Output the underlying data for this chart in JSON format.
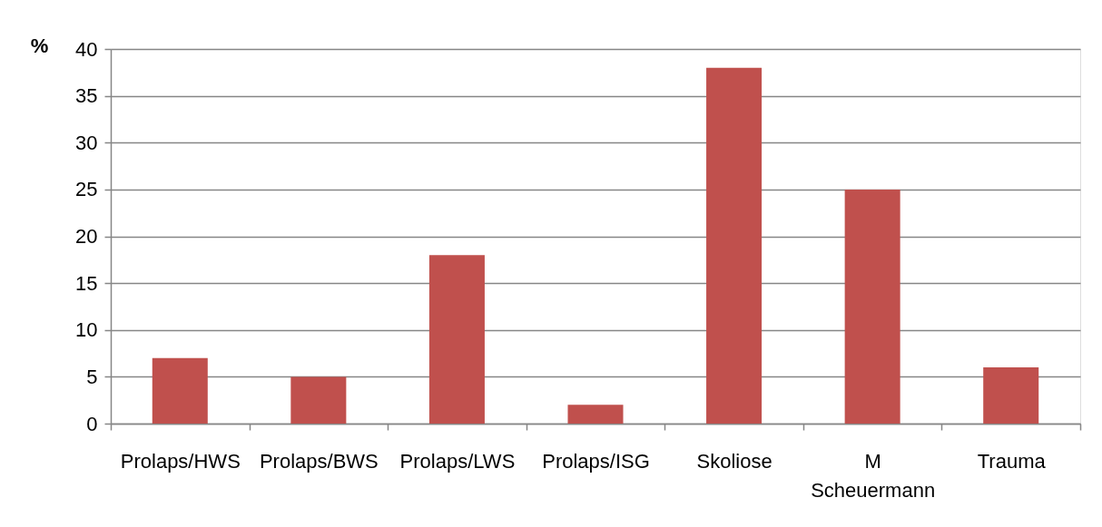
{
  "chart_data": {
    "type": "bar",
    "ylabel": "%",
    "categories": [
      "Prolaps/HWS",
      "Prolaps/BWS",
      "Prolaps/LWS",
      "Prolaps/ISG",
      "Skoliose",
      "M Scheuermann",
      "Trauma"
    ],
    "values": [
      7,
      5,
      18,
      2,
      38,
      25,
      6
    ],
    "color": "#c0504d",
    "ylim": [
      0,
      40
    ],
    "yticks": [
      0,
      5,
      10,
      15,
      20,
      25,
      30,
      35,
      40
    ],
    "grid": "y"
  }
}
